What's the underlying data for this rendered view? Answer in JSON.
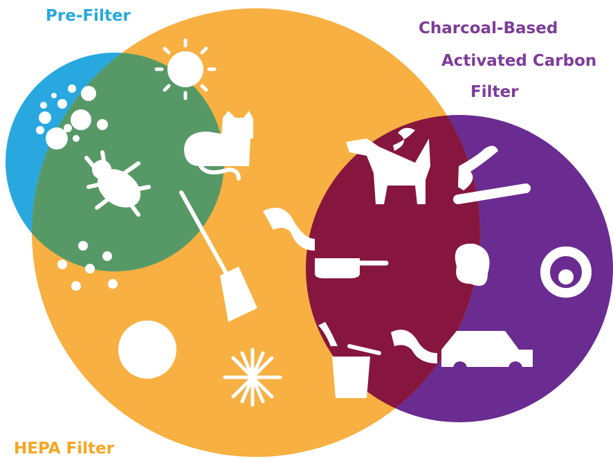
{
  "labels": {
    "pre_filter": "Pre-Filter",
    "carbon": [
      "Charcoal-Based",
      "Activated Carbon",
      "Filter"
    ],
    "hepa": "HEPA Filter"
  }
}
